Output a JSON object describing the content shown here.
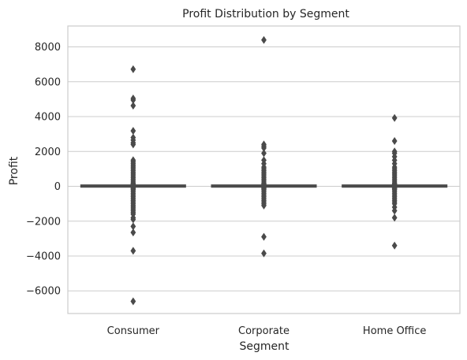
{
  "chart_data": {
    "type": "box",
    "title": "Profit Distribution by Segment",
    "xlabel": "Segment",
    "ylabel": "Profit",
    "ylim": [
      -7300,
      9200
    ],
    "yticks": [
      -6000,
      -4000,
      -2000,
      0,
      2000,
      4000,
      6000,
      8000
    ],
    "ytick_labels": [
      "−6000",
      "−4000",
      "−2000",
      "0",
      "2000",
      "4000",
      "6000",
      "8000"
    ],
    "grid": true,
    "categories": [
      "Consumer",
      "Corporate",
      "Home Office"
    ],
    "series": [
      {
        "category": "Consumer",
        "q1": 2,
        "median": 9,
        "q3": 29,
        "whisker_low": -39,
        "whisker_high": 70,
        "outliers": [
          6720,
          5040,
          4950,
          4630,
          3180,
          2800,
          2650,
          2500,
          2400,
          1500,
          1400,
          1300,
          1200,
          1100,
          1000,
          900,
          800,
          700,
          600,
          500,
          400,
          300,
          200,
          150,
          100,
          -100,
          -150,
          -200,
          -300,
          -400,
          -500,
          -600,
          -700,
          -800,
          -900,
          -1000,
          -1100,
          -1200,
          -1300,
          -1400,
          -1500,
          -1600,
          -1800,
          -1900,
          -2300,
          -2650,
          -3700,
          -6600
        ]
      },
      {
        "category": "Corporate",
        "q1": 2,
        "median": 9,
        "q3": 29,
        "whisker_low": -39,
        "whisker_high": 70,
        "outliers": [
          8400,
          2400,
          2300,
          2200,
          1900,
          1500,
          1300,
          1100,
          1000,
          900,
          800,
          700,
          600,
          500,
          400,
          300,
          200,
          150,
          100,
          -100,
          -150,
          -200,
          -300,
          -400,
          -500,
          -600,
          -700,
          -800,
          -900,
          -1000,
          -1100,
          -2900,
          -3850
        ]
      },
      {
        "category": "Home Office",
        "q1": 2,
        "median": 9,
        "q3": 29,
        "whisker_low": -39,
        "whisker_high": 70,
        "outliers": [
          3920,
          2600,
          2000,
          1900,
          1700,
          1500,
          1300,
          1100,
          1000,
          900,
          800,
          700,
          600,
          500,
          400,
          300,
          200,
          150,
          100,
          -100,
          -150,
          -200,
          -300,
          -400,
          -500,
          -600,
          -700,
          -800,
          -900,
          -1000,
          -1200,
          -1400,
          -1800,
          -3400
        ]
      }
    ],
    "colors": {
      "box": "#4a4a4a",
      "grid": "#cccccc",
      "spine": "#cccccc",
      "text": "#262626",
      "background": "#ffffff"
    }
  }
}
